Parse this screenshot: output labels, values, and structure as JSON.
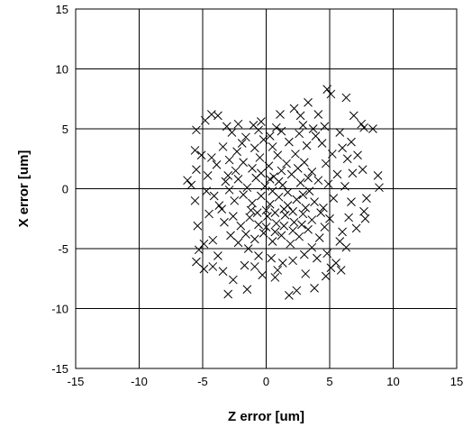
{
  "chart_data": {
    "type": "scatter",
    "xlabel": "Z error [um]",
    "ylabel": "X error [um]",
    "xlim": [
      -15,
      15
    ],
    "ylim": [
      -15,
      15
    ],
    "x_ticks": [
      -15,
      -10,
      -5,
      0,
      5,
      10,
      15
    ],
    "y_ticks": [
      -15,
      -10,
      -5,
      0,
      5,
      10,
      15
    ],
    "x_tick_labels": [
      "-15",
      "-10",
      "-5",
      "0",
      "5",
      "10",
      "15"
    ],
    "y_tick_labels": [
      "-15",
      "-10",
      "-5",
      "0",
      "5",
      "10",
      "15"
    ],
    "grid": true,
    "legend": "none",
    "marker": "x",
    "marker_color": "#000000",
    "series": [
      {
        "points": [
          [
            -5.5,
            4.9
          ],
          [
            -4.3,
            6.2
          ],
          [
            -3.8,
            6.1
          ],
          [
            -4.8,
            5.7
          ],
          [
            -3.1,
            5.2
          ],
          [
            -2.2,
            5.4
          ],
          [
            -1.0,
            5.3
          ],
          [
            -0.4,
            5.6
          ],
          [
            0.3,
            4.4
          ],
          [
            1.1,
            6.2
          ],
          [
            2.2,
            6.7
          ],
          [
            2.7,
            6.1
          ],
          [
            3.3,
            7.2
          ],
          [
            4.1,
            6.2
          ],
          [
            4.8,
            8.3
          ],
          [
            5.1,
            7.9
          ],
          [
            6.3,
            7.6
          ],
          [
            3.7,
            5.0
          ],
          [
            6.9,
            6.1
          ],
          [
            7.7,
            5.1
          ],
          [
            8.4,
            5.0
          ],
          [
            7.5,
            5.4
          ],
          [
            6.0,
            3.4
          ],
          [
            6.4,
            2.5
          ],
          [
            7.6,
            1.6
          ],
          [
            8.8,
            1.1
          ],
          [
            8.9,
            0.1
          ],
          [
            7.9,
            -0.8
          ],
          [
            7.7,
            -1.9
          ],
          [
            7.8,
            -2.5
          ],
          [
            6.5,
            -2.4
          ],
          [
            6.0,
            -3.6
          ],
          [
            5.8,
            -4.4
          ],
          [
            4.8,
            -5.4
          ],
          [
            5.5,
            -6.2
          ],
          [
            4.0,
            -5.8
          ],
          [
            5.1,
            -6.6
          ],
          [
            5.9,
            -6.8
          ],
          [
            4.7,
            -7.3
          ],
          [
            3.8,
            -8.3
          ],
          [
            2.4,
            -8.5
          ],
          [
            1.8,
            -8.9
          ],
          [
            0.7,
            -7.4
          ],
          [
            -0.3,
            -7.2
          ],
          [
            -0.9,
            -6.5
          ],
          [
            -1.5,
            -8.4
          ],
          [
            -2.6,
            -7.6
          ],
          [
            -3.0,
            -8.8
          ],
          [
            -3.4,
            -6.9
          ],
          [
            -4.2,
            -6.5
          ],
          [
            -4.9,
            -6.7
          ],
          [
            -5.5,
            -6.1
          ],
          [
            -5.3,
            -5.1
          ],
          [
            -4.2,
            -4.3
          ],
          [
            -5.4,
            -3.1
          ],
          [
            -5.6,
            -1.0
          ],
          [
            -5.9,
            0.3
          ],
          [
            -6.2,
            0.7
          ],
          [
            -5.5,
            1.6
          ],
          [
            -5.1,
            2.8
          ],
          [
            -5.6,
            3.2
          ],
          [
            -3.4,
            3.5
          ],
          [
            -3.9,
            2.0
          ],
          [
            -4.6,
            1.1
          ],
          [
            -3.2,
            0.6
          ],
          [
            -4.1,
            -0.6
          ],
          [
            -3.7,
            -1.4
          ],
          [
            -4.5,
            -2.1
          ],
          [
            -3.3,
            -2.8
          ],
          [
            -2.8,
            -3.9
          ],
          [
            -2.2,
            -4.5
          ],
          [
            -1.4,
            -5.0
          ],
          [
            -0.6,
            -5.6
          ],
          [
            0.4,
            -5.8
          ],
          [
            1.3,
            -6.2
          ],
          [
            2.1,
            -6.0
          ],
          [
            3.0,
            -5.5
          ],
          [
            3.6,
            -4.9
          ],
          [
            4.2,
            -4.1
          ],
          [
            4.6,
            -3.2
          ],
          [
            5.0,
            -2.5
          ],
          [
            4.5,
            -1.6
          ],
          [
            5.3,
            -0.8
          ],
          [
            4.9,
            0.4
          ],
          [
            5.6,
            1.2
          ],
          [
            4.7,
            2.1
          ],
          [
            5.2,
            2.9
          ],
          [
            4.4,
            3.8
          ],
          [
            3.9,
            4.4
          ],
          [
            3.2,
            3.6
          ],
          [
            2.6,
            4.6
          ],
          [
            1.8,
            3.9
          ],
          [
            1.2,
            4.8
          ],
          [
            0.5,
            3.5
          ],
          [
            -0.2,
            4.1
          ],
          [
            -0.9,
            3.4
          ],
          [
            -1.6,
            4.3
          ],
          [
            -2.3,
            3.1
          ],
          [
            -2.9,
            2.4
          ],
          [
            -2.4,
            1.5
          ],
          [
            -1.8,
            2.2
          ],
          [
            -1.1,
            1.7
          ],
          [
            -0.5,
            2.6
          ],
          [
            0.2,
            1.9
          ],
          [
            0.9,
            2.8
          ],
          [
            1.6,
            2.1
          ],
          [
            2.3,
            2.9
          ],
          [
            3.0,
            2.2
          ],
          [
            3.6,
            1.4
          ],
          [
            4.1,
            0.7
          ],
          [
            3.4,
            -0.2
          ],
          [
            2.7,
            0.5
          ],
          [
            2.0,
            1.2
          ],
          [
            1.3,
            0.3
          ],
          [
            0.6,
            1.0
          ],
          [
            -0.1,
            0.2
          ],
          [
            -0.8,
            0.9
          ],
          [
            -1.5,
            0.1
          ],
          [
            -2.2,
            0.8
          ],
          [
            -2.9,
            -0.1
          ],
          [
            -2.5,
            -1.0
          ],
          [
            -1.8,
            -0.5
          ],
          [
            -1.1,
            -1.2
          ],
          [
            -0.4,
            -0.6
          ],
          [
            0.3,
            -1.3
          ],
          [
            1.0,
            -0.7
          ],
          [
            1.7,
            -1.4
          ],
          [
            2.4,
            -0.9
          ],
          [
            3.1,
            -1.6
          ],
          [
            3.8,
            -1.1
          ],
          [
            4.3,
            -2.0
          ],
          [
            3.6,
            -2.6
          ],
          [
            2.9,
            -2.1
          ],
          [
            2.2,
            -2.8
          ],
          [
            1.5,
            -2.2
          ],
          [
            0.8,
            -2.9
          ],
          [
            0.1,
            -2.3
          ],
          [
            -0.6,
            -3.0
          ],
          [
            -1.3,
            -2.4
          ],
          [
            -2.0,
            -3.1
          ],
          [
            -1.6,
            -3.8
          ],
          [
            -0.9,
            -4.2
          ],
          [
            -0.2,
            -3.7
          ],
          [
            0.5,
            -4.4
          ],
          [
            1.2,
            -3.9
          ],
          [
            1.9,
            -4.6
          ],
          [
            2.6,
            -4.0
          ],
          [
            3.3,
            -3.4
          ],
          [
            2.8,
            -3.0
          ],
          [
            2.1,
            -3.5
          ],
          [
            1.4,
            -3.1
          ],
          [
            0.7,
            -3.6
          ],
          [
            0.0,
            -3.2
          ],
          [
            -0.7,
            -2.0
          ],
          [
            0.0,
            -1.8
          ],
          [
            0.7,
            -2.0
          ],
          [
            1.4,
            -1.7
          ],
          [
            2.1,
            -1.9
          ],
          [
            1.7,
            -0.3
          ],
          [
            1.0,
            0.6
          ],
          [
            0.3,
            0.8
          ],
          [
            -0.4,
            1.3
          ],
          [
            1.2,
            1.5
          ],
          [
            2.5,
            1.7
          ],
          [
            3.3,
            0.9
          ],
          [
            2.9,
            -0.5
          ],
          [
            0.5,
            -0.2
          ],
          [
            -1.2,
            -1.8
          ],
          [
            -2.6,
            -2.3
          ],
          [
            -3.5,
            -1.7
          ],
          [
            -3.0,
            1.1
          ],
          [
            -1.9,
            3.8
          ],
          [
            0.8,
            5.1
          ],
          [
            2.9,
            5.3
          ],
          [
            4.6,
            5.2
          ],
          [
            5.8,
            4.7
          ],
          [
            6.7,
            3.9
          ],
          [
            7.2,
            2.8
          ],
          [
            6.8,
            1.3
          ],
          [
            6.2,
            0.2
          ],
          [
            6.7,
            -1.1
          ],
          [
            7.1,
            -3.3
          ],
          [
            6.3,
            -4.9
          ],
          [
            3.1,
            -7.1
          ],
          [
            0.9,
            -6.8
          ],
          [
            -1.7,
            -6.4
          ],
          [
            -3.8,
            -5.6
          ],
          [
            -4.9,
            -4.6
          ],
          [
            -4.7,
            -0.2
          ],
          [
            -4.3,
            2.6
          ],
          [
            -2.7,
            4.7
          ],
          [
            -0.6,
            4.9
          ]
        ]
      }
    ]
  }
}
